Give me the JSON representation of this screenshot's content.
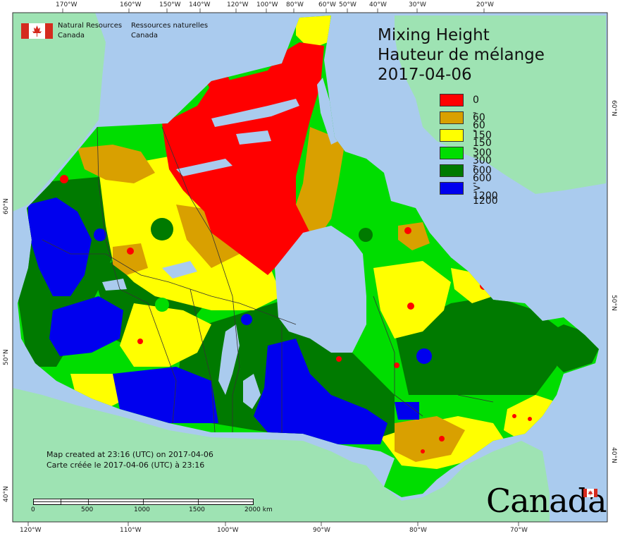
{
  "title": {
    "line1": "Mixing Height",
    "line2": "Hauteur de mélange",
    "line3": "2017-04-06"
  },
  "legend": [
    {
      "label": "0 - 60",
      "color": "#ff0000"
    },
    {
      "label": "60 - 150",
      "color": "#d9a000"
    },
    {
      "label": "150 - 300",
      "color": "#ffff00"
    },
    {
      "label": "300 - 600",
      "color": "#00dd00"
    },
    {
      "label": "600 - 1200",
      "color": "#007a00"
    },
    {
      "label": "> 1200",
      "color": "#0000ee"
    }
  ],
  "agency": {
    "en_line1": "Natural Resources",
    "en_line2": "Canada",
    "fr_line1": "Ressources naturelles",
    "fr_line2": "Canada"
  },
  "notes": {
    "created_en": "Map created at 23:16 (UTC) on 2017-04-06",
    "created_fr": "Carte créée le 2017-04-06 (UTC) à 23:16"
  },
  "scale": {
    "labels": [
      "0",
      "500",
      "1000",
      "1500",
      "2000 km"
    ]
  },
  "wordmark": "Canada",
  "graticule": {
    "top": [
      "170°W",
      "160°W",
      "150°W",
      "140°W",
      "120°W",
      "100°W",
      "80°W",
      "60°W",
      "50°W",
      "40°W",
      "30°W",
      "20°W"
    ],
    "bottom": [
      "120°W",
      "110°W",
      "100°W",
      "90°W",
      "80°W",
      "70°W"
    ],
    "left": [
      "60°N",
      "50°N",
      "40°N"
    ],
    "right": [
      "60°N",
      "50°N",
      "40°N"
    ]
  },
  "colors": {
    "ocean": "#aacbee",
    "land": "#9ee3b3",
    "water_lake": "#aacbee"
  }
}
